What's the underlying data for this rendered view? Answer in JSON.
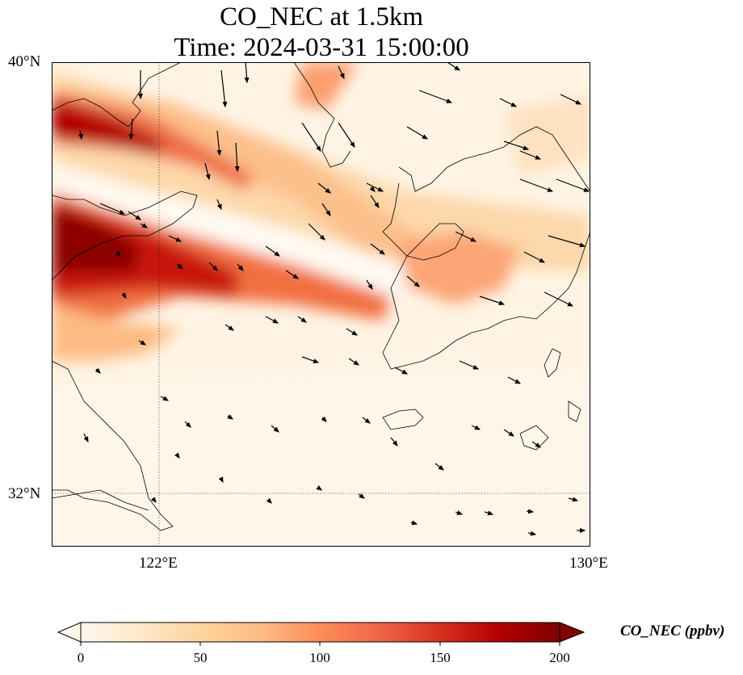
{
  "title": {
    "line1": "CO_NEC at 1.5km",
    "line2": "Time: 2024-03-31 15:00:00"
  },
  "axes": {
    "lat_ticks": [
      "40°N",
      "32°N"
    ],
    "lon_ticks": [
      "122°E",
      "130°E"
    ],
    "lon_range": [
      120,
      130
    ],
    "lat_range": [
      31,
      40
    ],
    "gridlines": "dotted at 122°E and 32°N"
  },
  "colorbar": {
    "label": "CO_NEC (ppbv)",
    "ticks": [
      "0",
      "50",
      "100",
      "150",
      "200"
    ],
    "range": [
      0,
      200
    ],
    "extend": "both",
    "colormap": "OrRd",
    "colors": [
      "#fff7ec",
      "#fee8c8",
      "#fdd49e",
      "#fdbb84",
      "#fc8d59",
      "#ef6548",
      "#d7301f",
      "#b30000",
      "#7f0000"
    ]
  },
  "legend_position": "bottom"
}
